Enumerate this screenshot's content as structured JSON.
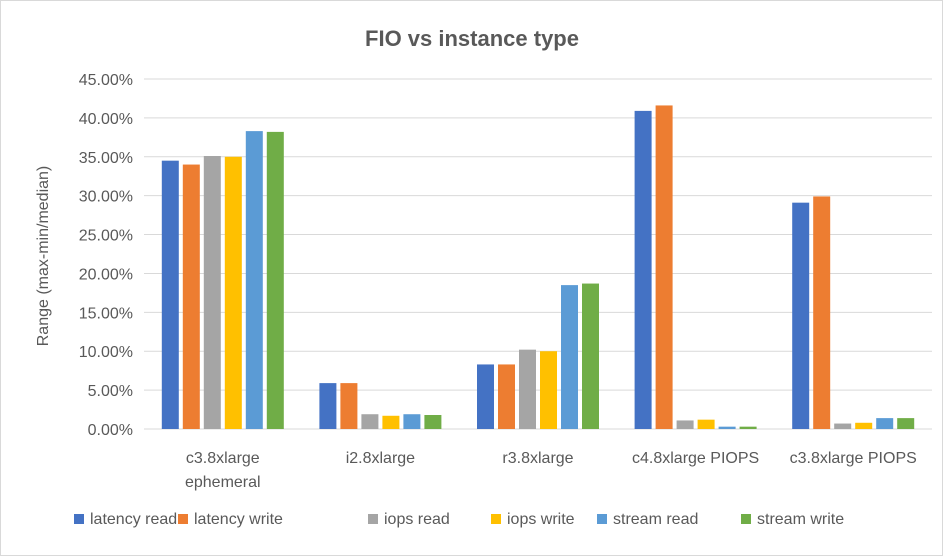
{
  "chart_data": {
    "type": "bar",
    "title": "FIO vs instance type",
    "xlabel": "",
    "ylabel": "Range (max-min/median)",
    "ylim": [
      0,
      0.45
    ],
    "yticks": [
      0,
      0.05,
      0.1,
      0.15,
      0.2,
      0.25,
      0.3,
      0.35,
      0.4,
      0.45
    ],
    "ytick_labels": [
      "0.00%",
      "5.00%",
      "10.00%",
      "15.00%",
      "20.00%",
      "25.00%",
      "30.00%",
      "35.00%",
      "40.00%",
      "45.00%"
    ],
    "grid": true,
    "legend_position": "bottom",
    "categories": [
      [
        "c3.8xlarge",
        "ephemeral"
      ],
      [
        "i2.8xlarge"
      ],
      [
        "r3.8xlarge"
      ],
      [
        "c4.8xlarge PIOPS"
      ],
      [
        "c3.8xlarge PIOPS"
      ]
    ],
    "series": [
      {
        "name": "latency read",
        "color": "#4472C4",
        "values": [
          0.345,
          0.059,
          0.083,
          0.409,
          0.291
        ]
      },
      {
        "name": "latency write",
        "color": "#ED7D31",
        "values": [
          0.34,
          0.059,
          0.083,
          0.416,
          0.299
        ]
      },
      {
        "name": "iops read",
        "color": "#A5A5A5",
        "values": [
          0.351,
          0.019,
          0.102,
          0.011,
          0.007
        ]
      },
      {
        "name": "iops write",
        "color": "#FFC000",
        "values": [
          0.35,
          0.017,
          0.1,
          0.012,
          0.008
        ]
      },
      {
        "name": "stream read",
        "color": "#5B9BD5",
        "values": [
          0.383,
          0.019,
          0.185,
          0.003,
          0.014
        ]
      },
      {
        "name": "stream write",
        "color": "#70AD47",
        "values": [
          0.382,
          0.018,
          0.187,
          0.003,
          0.014
        ]
      }
    ]
  }
}
